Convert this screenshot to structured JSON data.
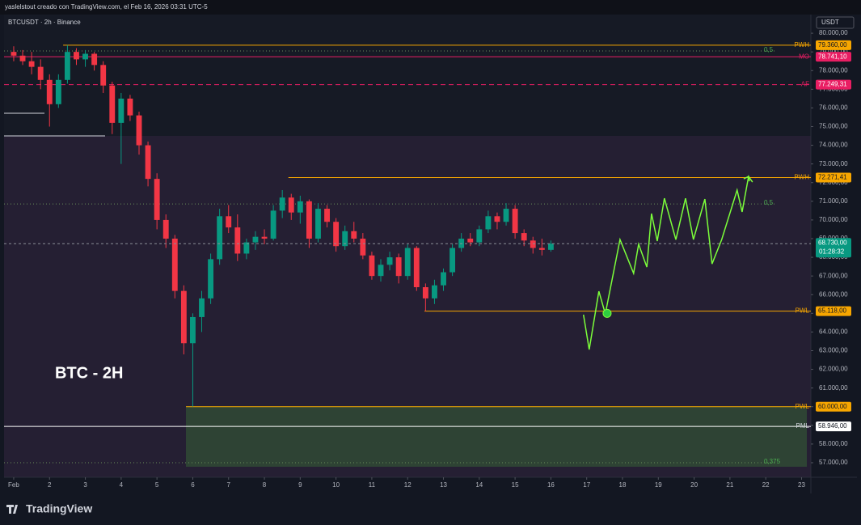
{
  "header": "yaslelstout creado con TradingView.com, el Feb 16, 2026 03:31 UTC-5",
  "branding": "TradingView",
  "chart_data": {
    "type": "candlestick",
    "title": "BTCUSDT · 2h · Binance",
    "watermark": "BTC - 2H",
    "currency": "USDT",
    "up_color": "#089981",
    "down_color": "#f23645",
    "xlim": [
      0.73,
      23.26
    ],
    "ylim": [
      56220,
      81000
    ],
    "xticks": [
      {
        "value": 1,
        "label": "Feb"
      },
      2,
      3,
      4,
      5,
      6,
      7,
      8,
      9,
      10,
      11,
      12,
      13,
      14,
      15,
      16,
      17,
      18,
      19,
      20,
      21,
      22,
      23
    ],
    "yticks": [
      {
        "value": 80000,
        "label": "80.000,00"
      },
      {
        "value": 79000,
        "label": "79.000,00"
      },
      {
        "value": 78000,
        "label": "78.000,00"
      },
      {
        "value": 77000,
        "label": "77.000,00"
      },
      {
        "value": 76000,
        "label": "76.000,00"
      },
      {
        "value": 75000,
        "label": "75.000,00"
      },
      {
        "value": 74000,
        "label": "74.000,00"
      },
      {
        "value": 73000,
        "label": "73.000,00"
      },
      {
        "value": 72000,
        "label": "72.000,00"
      },
      {
        "value": 71000,
        "label": "71.000,00"
      },
      {
        "value": 70000,
        "label": "70.000,00"
      },
      {
        "value": 69000,
        "label": "69.000,00"
      },
      {
        "value": 68000,
        "label": "68.000,00"
      },
      {
        "value": 67000,
        "label": "67.000,00"
      },
      {
        "value": 66000,
        "label": "66.000,00"
      },
      {
        "value": 65000,
        "label": "65.000,00"
      },
      {
        "value": 64000,
        "label": "64.000,00"
      },
      {
        "value": 63000,
        "label": "63.000,00"
      },
      {
        "value": 62000,
        "label": "62.000,00"
      },
      {
        "value": 61000,
        "label": "61.000,00"
      },
      {
        "value": 60000,
        "label": "60.000,00"
      },
      {
        "value": 59000,
        "label": "59.000,00"
      },
      {
        "value": 58000,
        "label": "58.000,00"
      },
      {
        "value": 57000,
        "label": "57.000,00"
      }
    ],
    "candles": {
      "x": [
        1,
        1.25,
        1.5,
        1.75,
        2,
        2.25,
        2.5,
        2.75,
        3,
        3.25,
        3.5,
        3.75,
        4,
        4.25,
        4.5,
        4.75,
        5,
        5.25,
        5.5,
        5.75,
        6,
        6.25,
        6.5,
        6.75,
        7,
        7.25,
        7.5,
        7.75,
        8,
        8.25,
        8.5,
        8.75,
        9,
        9.25,
        9.5,
        9.75,
        10,
        10.25,
        10.5,
        10.75,
        11,
        11.25,
        11.5,
        11.75,
        12,
        12.25,
        12.5,
        12.75,
        13,
        13.25,
        13.5,
        13.75,
        14,
        14.25,
        14.5,
        14.75,
        15,
        15.25,
        15.5,
        15.75,
        16
      ],
      "open": [
        79000,
        78800,
        78500,
        78200,
        77500,
        76200,
        77500,
        79000,
        78600,
        78900,
        78300,
        77200,
        75200,
        76500,
        75600,
        74000,
        72200,
        70000,
        69000,
        66200,
        63400,
        64800,
        65800,
        67900,
        70200,
        69600,
        68200,
        68800,
        69100,
        69000,
        70500,
        71200,
        70400,
        71000,
        69000,
        70600,
        69900,
        68600,
        69400,
        69000,
        68100,
        67000,
        67600,
        68000,
        67000,
        68500,
        66400,
        65800,
        66500,
        67200,
        68500,
        69000,
        68800,
        69500,
        70200,
        69900,
        70600,
        69300,
        68900,
        68500,
        68400
      ],
      "high": [
        79300,
        79100,
        79000,
        78600,
        77800,
        77800,
        79360,
        79200,
        79100,
        79000,
        78500,
        77400,
        76800,
        76700,
        75800,
        74200,
        72500,
        70300,
        69200,
        66500,
        65000,
        66200,
        68200,
        70600,
        70800,
        70300,
        69000,
        69400,
        69500,
        70800,
        71600,
        71400,
        71300,
        71100,
        70900,
        70800,
        70100,
        69700,
        69900,
        69300,
        68300,
        67900,
        68300,
        68200,
        68700,
        68600,
        66600,
        66800,
        67400,
        68700,
        69300,
        69300,
        69700,
        70500,
        70400,
        70900,
        70800,
        69500,
        69100,
        69000,
        68900
      ],
      "low": [
        78500,
        78300,
        77800,
        77000,
        75000,
        76000,
        77300,
        78300,
        78200,
        78000,
        76800,
        74600,
        73000,
        75300,
        73500,
        71800,
        69500,
        68500,
        65800,
        62800,
        60000,
        64000,
        65500,
        67600,
        69300,
        67800,
        67900,
        68400,
        68700,
        68900,
        70100,
        70000,
        69800,
        68500,
        68800,
        69600,
        68300,
        68400,
        68800,
        67900,
        66800,
        66700,
        67300,
        66600,
        66800,
        66200,
        65118,
        65500,
        66200,
        67000,
        68300,
        68600,
        68600,
        69300,
        69500,
        69700,
        69000,
        68600,
        68200,
        68100,
        68300
      ],
      "close": [
        78800,
        78500,
        78200,
        77500,
        76200,
        77500,
        79000,
        78600,
        78900,
        78300,
        77200,
        75200,
        76500,
        75600,
        74000,
        72200,
        70000,
        69000,
        66200,
        63400,
        64800,
        65800,
        67900,
        70200,
        69600,
        68200,
        68800,
        69100,
        69000,
        70500,
        71200,
        70400,
        71000,
        69000,
        70600,
        69900,
        68600,
        69400,
        69000,
        68100,
        67000,
        67600,
        68000,
        67000,
        68500,
        66400,
        65800,
        66500,
        67200,
        68500,
        69000,
        68800,
        69500,
        70200,
        69900,
        70600,
        69300,
        68900,
        68500,
        68400,
        68730
      ]
    },
    "levels": [
      {
        "name": "PWH",
        "value": 79360,
        "label": "79.360,00",
        "start": 2.38,
        "color": "#f7a600",
        "text_color": "#131722",
        "style": "solid"
      },
      {
        "name": "MO",
        "value": 78741.1,
        "label": "78.741,10",
        "color": "#e91e63",
        "text_color": "#ffffff",
        "style": "solid"
      },
      {
        "name": "AF",
        "value": 77249.31,
        "label": "77.249,31",
        "color": "#e91e63",
        "text_color": "#ffffff",
        "style": "dashed"
      },
      {
        "name": "PWH",
        "value": 72271.41,
        "label": "72.271,41",
        "start": 8.67,
        "color": "#f7a600",
        "text_color": "#131722",
        "style": "solid"
      },
      {
        "name": "PWL",
        "value": 65118,
        "label": "65.118,00",
        "start": 12.47,
        "color": "#f7a600",
        "text_color": "#131722",
        "style": "solid"
      },
      {
        "name": "PWL",
        "value": 60000,
        "label": "60.000,00",
        "start": 5.81,
        "color": "#f7a600",
        "text_color": "#131722",
        "style": "solid"
      },
      {
        "name": "PML",
        "value": 58946,
        "label": "58.946,00",
        "color": "#ffffff",
        "text_color": "#131722",
        "style": "solid"
      }
    ],
    "fib_levels": [
      {
        "label": "0,5",
        "value": 79050
      },
      {
        "label": "0,5",
        "value": 70860
      },
      {
        "label": "0,375",
        "value": 57000
      }
    ],
    "current_price": {
      "value": 68730,
      "label": "68.730,00",
      "countdown": "01:28:32",
      "color": "#089981"
    },
    "projection": {
      "color": "#7cff3a",
      "x": [
        16.91,
        17.07,
        17.34,
        17.52,
        17.93,
        18.31,
        18.45,
        18.68,
        18.81,
        18.97,
        19.17,
        19.49,
        19.76,
        19.98,
        20.3,
        20.5,
        20.77,
        21.2,
        21.34,
        21.52,
        21.63
      ],
      "values": [
        64930,
        63060,
        66180,
        64970,
        68950,
        67140,
        68700,
        67480,
        70340,
        68870,
        71160,
        68950,
        71160,
        68950,
        71120,
        67650,
        68950,
        71600,
        70430,
        72330,
        72030
      ],
      "marker": {
        "x": 17.57,
        "value": 65000
      }
    }
  }
}
